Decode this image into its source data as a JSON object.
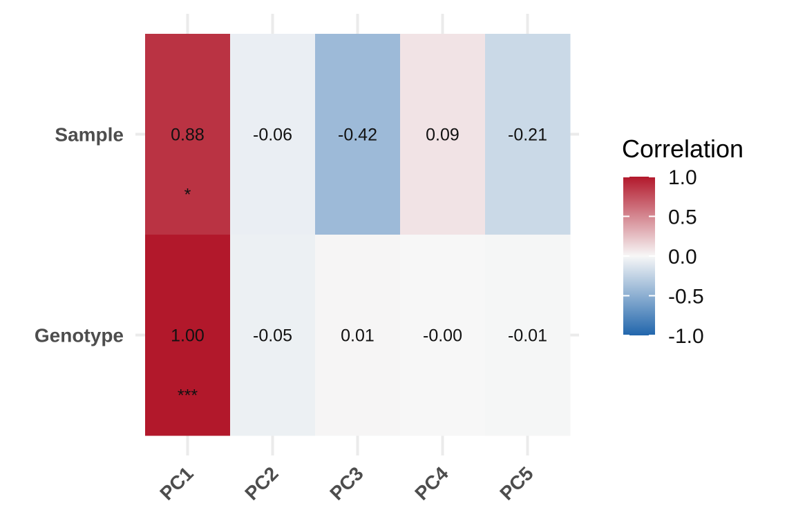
{
  "chart_data": {
    "type": "heatmap",
    "title": "",
    "xlabel": "",
    "ylabel": "",
    "x_categories": [
      "PC1",
      "PC2",
      "PC3",
      "PC4",
      "PC5"
    ],
    "y_categories": [
      "Sample",
      "Genotype"
    ],
    "values": [
      [
        0.88,
        -0.06,
        -0.42,
        0.09,
        -0.21
      ],
      [
        1.0,
        -0.05,
        0.01,
        -0.0,
        -0.01
      ]
    ],
    "value_labels": [
      [
        "0.88",
        "-0.06",
        "-0.42",
        "0.09",
        "-0.21"
      ],
      [
        "1.00",
        "-0.05",
        "0.01",
        "-0.00",
        "-0.01"
      ]
    ],
    "significance": [
      [
        "*",
        "",
        "",
        "",
        ""
      ],
      [
        "***",
        "",
        "",
        "",
        ""
      ]
    ],
    "color_scale": {
      "low": "#2166ac",
      "mid": "#f7f7f7",
      "high": "#b2182b",
      "limits": [
        -1.0,
        1.0
      ]
    },
    "legend": {
      "title": "Correlation",
      "ticks": [
        "1.0",
        "0.5",
        "0.0",
        "-0.5",
        "-1.0"
      ],
      "placement": "right"
    },
    "grid": true
  }
}
